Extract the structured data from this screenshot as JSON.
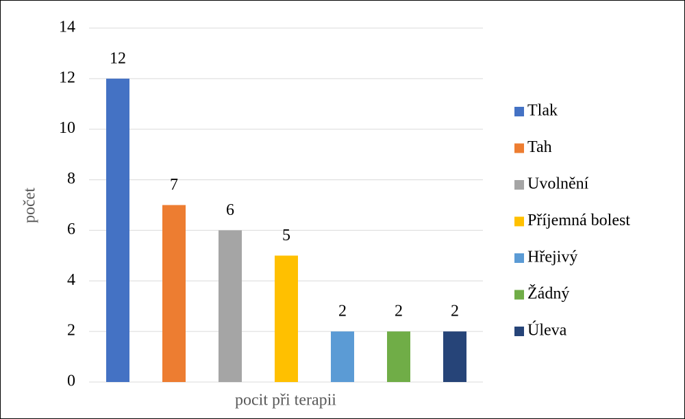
{
  "chart_data": {
    "type": "bar",
    "categories": [
      null
    ],
    "xlabel": "pocit při terapii",
    "ylabel": "počet",
    "series": [
      {
        "name": "Tlak",
        "color": "#4472c4",
        "values": [
          12
        ]
      },
      {
        "name": "Tah",
        "color": "#ed7d31",
        "values": [
          7
        ]
      },
      {
        "name": "Uvolnění",
        "color": "#a5a5a5",
        "values": [
          6
        ]
      },
      {
        "name": "Příjemná bolest",
        "color": "#ffc000",
        "values": [
          5
        ]
      },
      {
        "name": "Hřejivý",
        "color": "#5b9bd5",
        "values": [
          2
        ]
      },
      {
        "name": "Žádný",
        "color": "#70ad47",
        "values": [
          2
        ]
      },
      {
        "name": "Úleva",
        "color": "#264478",
        "values": [
          2
        ]
      }
    ],
    "ylim": [
      0,
      14
    ],
    "yticks": [
      0,
      2,
      4,
      6,
      8,
      10,
      12,
      14
    ],
    "grid": true,
    "legend": "right"
  }
}
